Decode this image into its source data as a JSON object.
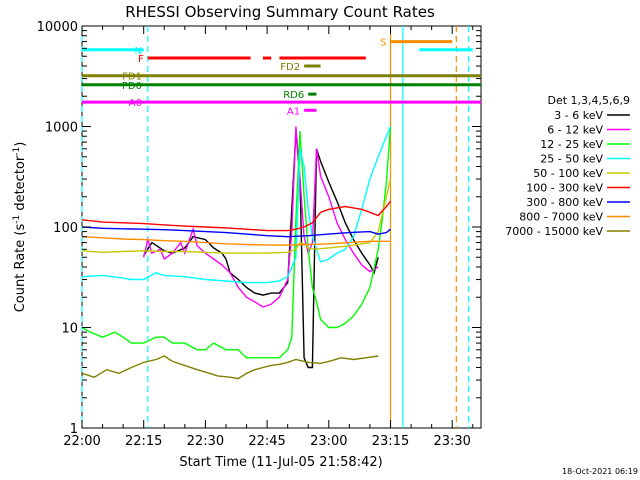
{
  "chart_data": {
    "type": "line",
    "title": "RHESSI Observing Summary Count Rates",
    "xlabel": "Start Time (11-Jul-05 21:58:42)",
    "ylabel": "Count Rate (s",
    "ylabel_sup": "-1",
    "ylabel_tail": " detector",
    "ylabel_close": ")",
    "yscale": "log",
    "xlim_min": [
      0,
      97
    ],
    "ylim": [
      1,
      10000
    ],
    "x_ticks": [
      {
        "min": 0,
        "label": "22:00"
      },
      {
        "min": 15,
        "label": "22:15"
      },
      {
        "min": 30,
        "label": "22:30"
      },
      {
        "min": 45,
        "label": "22:45"
      },
      {
        "min": 60,
        "label": "23:00"
      },
      {
        "min": 75,
        "label": "23:15"
      },
      {
        "min": 90,
        "label": "23:30"
      }
    ],
    "y_ticks": [
      {
        "v": 1,
        "label": "1"
      },
      {
        "v": 10,
        "label": "10"
      },
      {
        "v": 100,
        "label": "100"
      },
      {
        "v": 1000,
        "label": "1000"
      },
      {
        "v": 10000,
        "label": "10000"
      }
    ],
    "legend_title": "Det 1,3,4,5,6,9",
    "legend_position": "right",
    "series": [
      {
        "name": "3 - 6 keV",
        "color": "#000000",
        "points": [
          [
            15,
            52
          ],
          [
            17,
            70
          ],
          [
            20,
            58
          ],
          [
            22,
            55
          ],
          [
            25,
            62
          ],
          [
            27,
            80
          ],
          [
            30,
            75
          ],
          [
            32,
            62
          ],
          [
            34,
            55
          ],
          [
            35,
            48
          ],
          [
            36,
            35
          ],
          [
            38,
            30
          ],
          [
            40,
            25
          ],
          [
            42,
            22
          ],
          [
            44,
            21
          ],
          [
            46,
            22
          ],
          [
            48,
            22
          ],
          [
            50,
            28
          ],
          [
            51,
            150
          ],
          [
            52,
            900
          ],
          [
            53,
            300
          ],
          [
            54,
            5
          ],
          [
            55,
            4
          ],
          [
            56,
            4
          ],
          [
            57,
            600
          ],
          [
            58,
            450
          ],
          [
            60,
            280
          ],
          [
            62,
            180
          ],
          [
            64,
            110
          ],
          [
            66,
            75
          ],
          [
            68,
            55
          ],
          [
            70,
            42
          ],
          [
            71,
            35
          ],
          [
            72,
            50
          ]
        ]
      },
      {
        "name": "6 - 12 keV",
        "color": "#ff00ff",
        "points": [
          [
            15,
            50
          ],
          [
            16,
            75
          ],
          [
            17,
            55
          ],
          [
            19,
            60
          ],
          [
            20,
            48
          ],
          [
            22,
            55
          ],
          [
            24,
            70
          ],
          [
            25,
            55
          ],
          [
            27,
            95
          ],
          [
            28,
            65
          ],
          [
            30,
            55
          ],
          [
            32,
            48
          ],
          [
            34,
            42
          ],
          [
            36,
            35
          ],
          [
            38,
            25
          ],
          [
            40,
            20
          ],
          [
            42,
            18
          ],
          [
            44,
            16
          ],
          [
            46,
            17
          ],
          [
            48,
            20
          ],
          [
            50,
            30
          ],
          [
            51,
            90
          ],
          [
            52,
            1000
          ],
          [
            53,
            300
          ],
          [
            54,
            80
          ],
          [
            55,
            55
          ],
          [
            56,
            70
          ],
          [
            57,
            600
          ],
          [
            58,
            320
          ],
          [
            60,
            200
          ],
          [
            62,
            110
          ],
          [
            64,
            75
          ],
          [
            66,
            55
          ],
          [
            68,
            42
          ],
          [
            70,
            36
          ],
          [
            72,
            40
          ]
        ]
      },
      {
        "name": "12 - 25 keV",
        "color": "#00ff00",
        "points": [
          [
            0,
            10
          ],
          [
            2,
            9
          ],
          [
            5,
            8
          ],
          [
            8,
            9
          ],
          [
            10,
            8
          ],
          [
            12,
            7
          ],
          [
            15,
            7
          ],
          [
            18,
            8
          ],
          [
            20,
            8
          ],
          [
            22,
            7
          ],
          [
            25,
            7
          ],
          [
            28,
            6
          ],
          [
            30,
            6
          ],
          [
            32,
            7
          ],
          [
            35,
            6
          ],
          [
            38,
            6
          ],
          [
            40,
            5
          ],
          [
            42,
            5
          ],
          [
            44,
            5
          ],
          [
            46,
            5
          ],
          [
            48,
            5
          ],
          [
            50,
            6
          ],
          [
            51,
            8
          ],
          [
            52,
            120
          ],
          [
            53,
            900
          ],
          [
            54,
            200
          ],
          [
            55,
            60
          ],
          [
            56,
            25
          ],
          [
            57,
            18
          ],
          [
            58,
            12
          ],
          [
            60,
            10
          ],
          [
            62,
            10
          ],
          [
            64,
            11
          ],
          [
            66,
            13
          ],
          [
            68,
            17
          ],
          [
            70,
            25
          ],
          [
            72,
            60
          ],
          [
            73,
            120
          ],
          [
            74,
            280
          ],
          [
            75,
            1000
          ]
        ]
      },
      {
        "name": "25 - 50 keV",
        "color": "#00ffff",
        "points": [
          [
            0,
            32
          ],
          [
            5,
            33
          ],
          [
            10,
            31
          ],
          [
            12,
            30
          ],
          [
            15,
            30
          ],
          [
            18,
            35
          ],
          [
            20,
            33
          ],
          [
            25,
            32
          ],
          [
            30,
            30
          ],
          [
            35,
            29
          ],
          [
            40,
            28
          ],
          [
            45,
            28
          ],
          [
            48,
            29
          ],
          [
            50,
            32
          ],
          [
            52,
            50
          ],
          [
            53,
            600
          ],
          [
            54,
            400
          ],
          [
            55,
            150
          ],
          [
            56,
            80
          ],
          [
            57,
            60
          ],
          [
            58,
            45
          ],
          [
            60,
            48
          ],
          [
            62,
            55
          ],
          [
            64,
            60
          ],
          [
            66,
            80
          ],
          [
            68,
            150
          ],
          [
            70,
            300
          ],
          [
            72,
            500
          ],
          [
            74,
            800
          ],
          [
            75,
            1000
          ]
        ]
      },
      {
        "name": "50 - 100 keV",
        "color": "#c8c800",
        "points": [
          [
            0,
            58
          ],
          [
            5,
            56
          ],
          [
            10,
            57
          ],
          [
            15,
            58
          ],
          [
            20,
            57
          ],
          [
            25,
            57
          ],
          [
            30,
            56
          ],
          [
            35,
            55
          ],
          [
            40,
            55
          ],
          [
            45,
            55
          ],
          [
            50,
            56
          ],
          [
            52,
            60
          ],
          [
            53,
            70
          ],
          [
            54,
            68
          ],
          [
            55,
            62
          ],
          [
            56,
            60
          ],
          [
            60,
            62
          ],
          [
            65,
            65
          ],
          [
            70,
            70
          ],
          [
            72,
            90
          ],
          [
            74,
            200
          ],
          [
            75,
            300
          ]
        ]
      },
      {
        "name": "100 - 300 keV",
        "color": "#ff0000",
        "points": [
          [
            0,
            118
          ],
          [
            5,
            112
          ],
          [
            10,
            110
          ],
          [
            15,
            108
          ],
          [
            20,
            105
          ],
          [
            25,
            102
          ],
          [
            30,
            100
          ],
          [
            35,
            98
          ],
          [
            40,
            95
          ],
          [
            45,
            92
          ],
          [
            50,
            92
          ],
          [
            52,
            95
          ],
          [
            54,
            100
          ],
          [
            56,
            110
          ],
          [
            58,
            140
          ],
          [
            60,
            150
          ],
          [
            62,
            155
          ],
          [
            64,
            160
          ],
          [
            66,
            155
          ],
          [
            68,
            150
          ],
          [
            70,
            140
          ],
          [
            72,
            130
          ],
          [
            74,
            160
          ],
          [
            75,
            180
          ]
        ]
      },
      {
        "name": "300 - 800 keV",
        "color": "#0000ff",
        "points": [
          [
            0,
            100
          ],
          [
            5,
            97
          ],
          [
            10,
            96
          ],
          [
            15,
            95
          ],
          [
            20,
            94
          ],
          [
            25,
            92
          ],
          [
            30,
            90
          ],
          [
            35,
            88
          ],
          [
            40,
            85
          ],
          [
            45,
            82
          ],
          [
            50,
            80
          ],
          [
            55,
            82
          ],
          [
            60,
            85
          ],
          [
            65,
            88
          ],
          [
            70,
            90
          ],
          [
            72,
            85
          ],
          [
            74,
            88
          ],
          [
            75,
            95
          ]
        ]
      },
      {
        "name": "800 - 7000 keV",
        "color": "#ff8c00",
        "points": [
          [
            0,
            80
          ],
          [
            5,
            78
          ],
          [
            10,
            76
          ],
          [
            15,
            75
          ],
          [
            20,
            73
          ],
          [
            25,
            72
          ],
          [
            30,
            70
          ],
          [
            35,
            68
          ],
          [
            40,
            67
          ],
          [
            45,
            66
          ],
          [
            50,
            66
          ],
          [
            55,
            67
          ],
          [
            60,
            68
          ],
          [
            65,
            70
          ],
          [
            70,
            72
          ],
          [
            75,
            72
          ]
        ]
      },
      {
        "name": "7000 - 15000 keV",
        "color": "#808000",
        "points": [
          [
            0,
            3.5
          ],
          [
            3,
            3.2
          ],
          [
            6,
            3.8
          ],
          [
            9,
            3.5
          ],
          [
            12,
            4
          ],
          [
            15,
            4.5
          ],
          [
            18,
            4.8
          ],
          [
            20,
            5.2
          ],
          [
            22,
            4.6
          ],
          [
            25,
            4.2
          ],
          [
            28,
            3.8
          ],
          [
            30,
            3.6
          ],
          [
            33,
            3.3
          ],
          [
            36,
            3.2
          ],
          [
            38,
            3.1
          ],
          [
            40,
            3.5
          ],
          [
            42,
            3.8
          ],
          [
            44,
            4
          ],
          [
            46,
            4.2
          ],
          [
            48,
            4.3
          ],
          [
            50,
            4.5
          ],
          [
            52,
            4.8
          ],
          [
            55,
            4.5
          ],
          [
            58,
            4.4
          ],
          [
            60,
            4.6
          ],
          [
            63,
            5
          ],
          [
            66,
            4.8
          ],
          [
            69,
            5
          ],
          [
            72,
            5.2
          ]
        ]
      }
    ],
    "flag_bars": [
      {
        "label": "N",
        "color": "#00ffff",
        "y": 5800,
        "segments": [
          [
            0,
            15
          ],
          [
            82,
            95
          ]
        ]
      },
      {
        "label": "F",
        "color": "#ff0000",
        "y": 4800,
        "segments": [
          [
            16,
            41
          ],
          [
            44,
            46
          ],
          [
            48,
            69
          ]
        ]
      },
      {
        "label": "S",
        "color": "#ff8c00",
        "y": 7000,
        "segments": [
          [
            75,
            90
          ]
        ]
      },
      {
        "label": "FD1",
        "color": "#808000",
        "y": 3200,
        "segments": [
          [
            0,
            97
          ]
        ]
      },
      {
        "label": "FD2",
        "color": "#808000",
        "y": 4000,
        "segments": [
          [
            54,
            58
          ]
        ]
      },
      {
        "label": "PD0",
        "color": "#008000",
        "y": 2600,
        "segments": [
          [
            0,
            97
          ]
        ]
      },
      {
        "label": "RD6",
        "color": "#008000",
        "y": 2100,
        "segments": [
          [
            55,
            57
          ]
        ]
      },
      {
        "label": "A0",
        "color": "#ff00ff",
        "y": 1750,
        "segments": [
          [
            0,
            97
          ]
        ]
      },
      {
        "label": "A1",
        "color": "#ff00ff",
        "y": 1450,
        "segments": [
          [
            54,
            57
          ]
        ]
      }
    ],
    "vertical_markers": [
      {
        "min": 0,
        "color": "#00ffff",
        "style": "dashed"
      },
      {
        "min": 16,
        "color": "#00ffff",
        "style": "dashed"
      },
      {
        "min": 75,
        "color": "#ff8c00",
        "style": "solid"
      },
      {
        "min": 78,
        "color": "#00ffff",
        "style": "solid"
      },
      {
        "min": 91,
        "color": "#ff8c00",
        "style": "dashed"
      },
      {
        "min": 94,
        "color": "#00ffff",
        "style": "dashed"
      }
    ]
  },
  "footer_timestamp": "18-Oct-2021 06:19"
}
